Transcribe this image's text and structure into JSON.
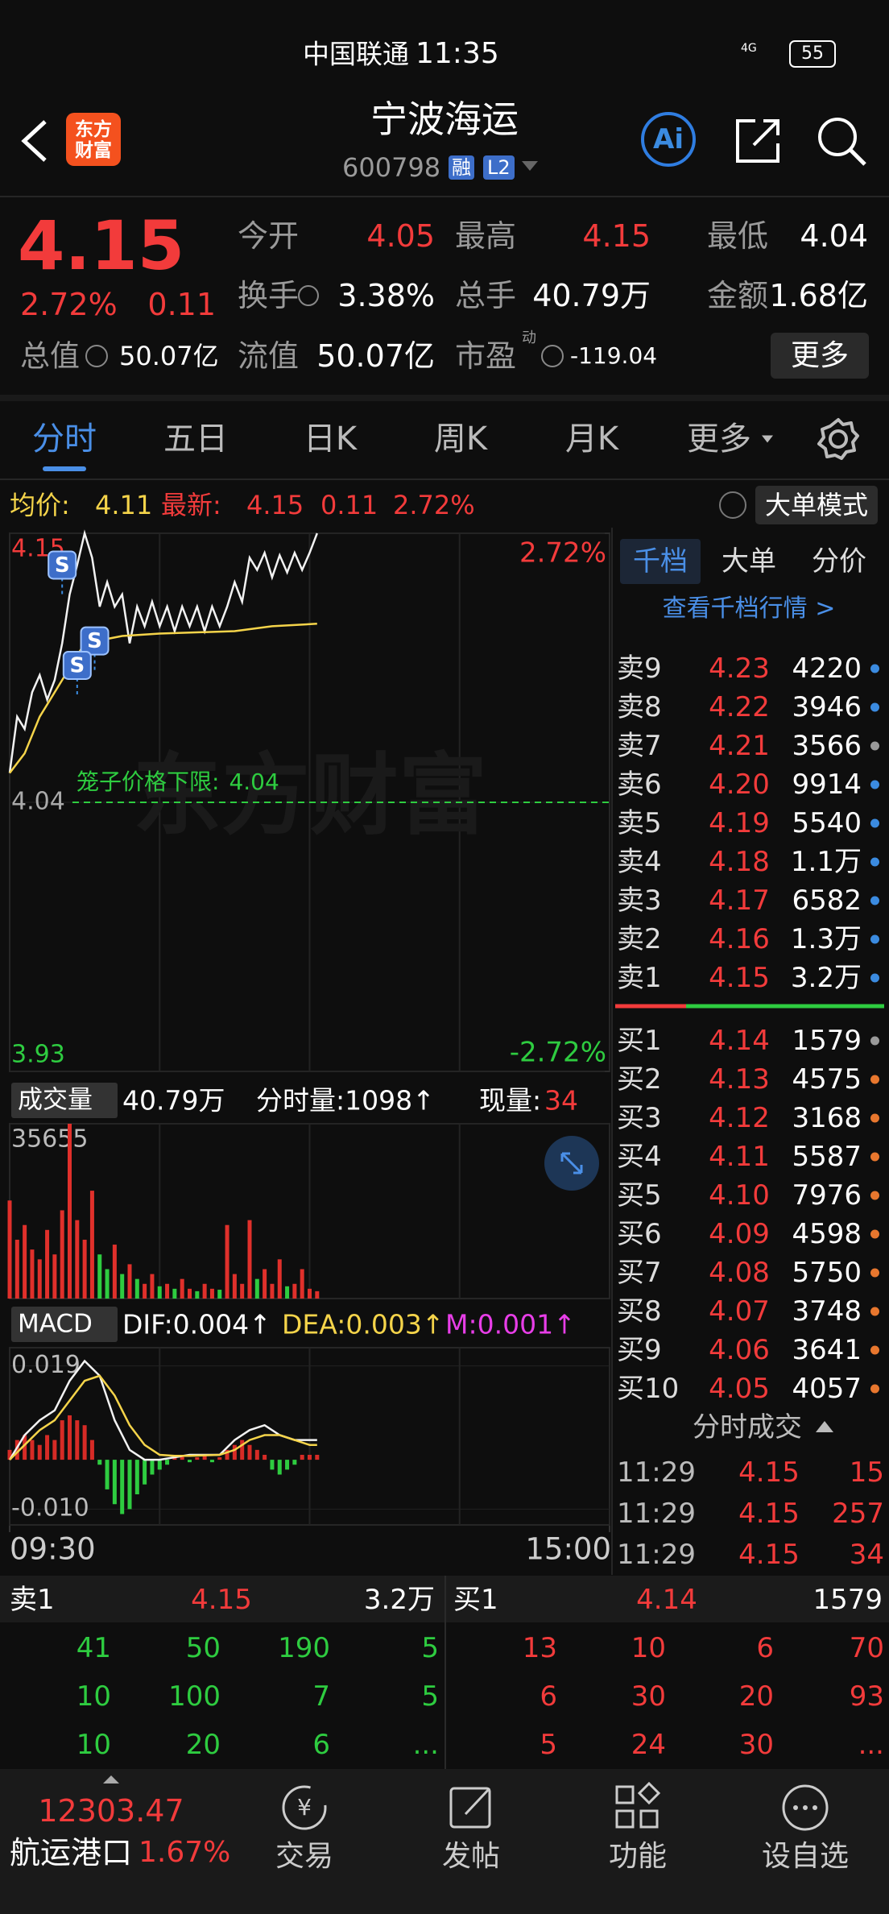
{
  "status_bar": {
    "carrier": "中国联通",
    "time": "11:35",
    "network": "4G",
    "battery": "55"
  },
  "header": {
    "logo": "东方财富",
    "title": "宁波海运",
    "code": "600798",
    "badges": [
      "融",
      "L2"
    ],
    "ai": "Ai"
  },
  "quote": {
    "price": "4.15",
    "change_pct": "2.72%",
    "change": "0.11",
    "fields": [
      {
        "label": "今开",
        "value": "4.05",
        "color": "#f23b3b"
      },
      {
        "label": "最高",
        "value": "4.15",
        "color": "#f23b3b"
      },
      {
        "label": "最低",
        "value": "4.04",
        "color": "#ffffff"
      },
      {
        "label": "换手",
        "value": "3.38%",
        "color": "#ffffff"
      },
      {
        "label": "总手",
        "value": "40.79万",
        "color": "#ffffff"
      },
      {
        "label": "金额",
        "value": "1.68亿",
        "color": "#ffffff"
      }
    ],
    "total_value": {
      "label": "总值",
      "value": "50.07亿"
    },
    "float_value": {
      "label": "流值",
      "value": "50.07亿"
    },
    "pe": {
      "label": "市盈",
      "sup": "动",
      "value": "-119.04"
    },
    "more": "更多"
  },
  "tabs": {
    "items": [
      "分时",
      "五日",
      "日K",
      "周K",
      "月K",
      "更多"
    ],
    "active": 0
  },
  "info_bar": {
    "avg_label": "均价:",
    "avg": "4.11",
    "last_label": "最新:",
    "last": "4.15",
    "change": "0.11",
    "change_pct": "2.72%",
    "mode": "大单模式"
  },
  "chart_data": [
    {
      "type": "line",
      "xlim": [
        0,
        240
      ],
      "xticks": [
        {
          "value": 0,
          "label": "09:30"
        },
        {
          "value": 240,
          "label": "15:00"
        }
      ],
      "ylim": [
        3.93,
        4.15
      ],
      "yticks": [
        3.93,
        4.04,
        4.15
      ],
      "y2lim": [
        -2.72,
        2.72
      ],
      "y2ticks": [
        {
          "value": -2.72,
          "label": "-2.72%"
        },
        {
          "value": 2.72,
          "label": "2.72%"
        }
      ],
      "guide": {
        "label": "笼子价格下限:",
        "value": 4.04,
        "color": "#2ecc40"
      },
      "watermark": "东方财富",
      "series": [
        {
          "color": "#f2f2f2",
          "x": [
            0,
            3,
            6,
            9,
            12,
            15,
            18,
            21,
            24,
            27,
            30,
            33,
            36,
            39,
            42,
            45,
            48,
            51,
            54,
            57,
            60,
            63,
            66,
            69,
            72,
            75,
            78,
            81,
            84,
            87,
            90,
            93,
            96,
            99,
            102,
            105,
            108,
            111,
            114,
            117,
            120,
            123
          ],
          "values": [
            4.052,
            4.075,
            4.07,
            4.085,
            4.092,
            4.082,
            4.09,
            4.105,
            4.125,
            4.137,
            4.15,
            4.14,
            4.12,
            4.13,
            4.12,
            4.125,
            4.105,
            4.12,
            4.112,
            4.122,
            4.112,
            4.12,
            4.11,
            4.12,
            4.112,
            4.12,
            4.11,
            4.12,
            4.112,
            4.12,
            4.13,
            4.122,
            4.14,
            4.135,
            4.142,
            4.132,
            4.141,
            4.134,
            4.142,
            4.135,
            4.142,
            4.15
          ]
        },
        {
          "color": "#f5d44a",
          "x": [
            0,
            6,
            12,
            18,
            24,
            30,
            45,
            60,
            90,
            105,
            123
          ],
          "values": [
            4.052,
            4.06,
            4.075,
            4.085,
            4.095,
            4.105,
            4.108,
            4.109,
            4.11,
            4.112,
            4.113
          ]
        }
      ],
      "trade_marks": [
        {
          "label": "S",
          "x": 21,
          "value": 4.137
        },
        {
          "label": "S",
          "x": 34,
          "value": 4.106
        },
        {
          "label": "S",
          "x": 27,
          "value": 4.096
        }
      ]
    },
    {
      "type": "bar",
      "header": {
        "selector": "成交量",
        "total": "40.79万",
        "minute": "分时量:1098↑",
        "current_label": "现量:",
        "current": "34"
      },
      "xlim": [
        0,
        240
      ],
      "ylim": [
        0,
        35655
      ],
      "yticks": [
        35655
      ],
      "x": [
        0,
        3,
        6,
        9,
        12,
        15,
        18,
        21,
        24,
        27,
        30,
        33,
        36,
        39,
        42,
        45,
        48,
        51,
        54,
        57,
        60,
        63,
        66,
        69,
        72,
        75,
        78,
        81,
        84,
        87,
        90,
        93,
        96,
        99,
        102,
        105,
        108,
        111,
        114,
        117,
        120,
        123
      ],
      "values": [
        20000,
        12000,
        15000,
        10000,
        8000,
        14000,
        9000,
        18000,
        35655,
        16000,
        12000,
        22000,
        9000,
        6000,
        11000,
        5000,
        7000,
        4000,
        3000,
        5000,
        2500,
        3000,
        2000,
        4000,
        2000,
        1500,
        3000,
        2000,
        1800,
        15000,
        5000,
        3000,
        16000,
        4000,
        6000,
        3000,
        8000,
        2500,
        3000,
        6000,
        2000,
        1500
      ],
      "colors": [
        "#e0302b",
        "#e0302b",
        "#e0302b",
        "#e0302b",
        "#e0302b",
        "#e0302b",
        "#e0302b",
        "#e0302b",
        "#e0302b",
        "#e0302b",
        "#e0302b",
        "#e0302b",
        "#2ecc40",
        "#2ecc40",
        "#e0302b",
        "#2ecc40",
        "#e0302b",
        "#2ecc40",
        "#e0302b",
        "#e0302b",
        "#2ecc40",
        "#e0302b",
        "#2ecc40",
        "#e0302b",
        "#e0302b",
        "#2ecc40",
        "#e0302b",
        "#e0302b",
        "#2ecc40",
        "#e0302b",
        "#e0302b",
        "#e0302b",
        "#e0302b",
        "#2ecc40",
        "#e0302b",
        "#e0302b",
        "#e0302b",
        "#2ecc40",
        "#e0302b",
        "#e0302b",
        "#e0302b",
        "#e0302b"
      ]
    },
    {
      "type": "macd",
      "header": {
        "selector": "MACD",
        "dif": "DIF:0.004↑",
        "dea": "DEA:0.003↑",
        "m": "M:0.001↑"
      },
      "xlim": [
        0,
        240
      ],
      "ylim": [
        -0.0132,
        0.0227
      ],
      "yticks": [
        0.019,
        {
          "value": -0.01,
          "label": "-0.010"
        }
      ],
      "lines": [
        {
          "color": "#f2f2f2",
          "x": [
            0,
            6,
            12,
            18,
            24,
            30,
            36,
            42,
            48,
            54,
            60,
            66,
            72,
            78,
            84,
            90,
            96,
            102,
            108,
            114,
            120,
            123
          ],
          "values": [
            0,
            0.005,
            0.008,
            0.01,
            0.016,
            0.02,
            0.017,
            0.008,
            0.002,
            0,
            0,
            0.0005,
            0.001,
            0.001,
            0.001,
            0.004,
            0.006,
            0.007,
            0.005,
            0.004,
            0.004,
            0.004
          ]
        },
        {
          "color": "#f5d44a",
          "x": [
            0,
            6,
            12,
            18,
            24,
            30,
            36,
            42,
            48,
            54,
            60,
            66,
            72,
            78,
            84,
            90,
            96,
            102,
            108,
            114,
            120,
            123
          ],
          "values": [
            0,
            0.003,
            0.006,
            0.008,
            0.012,
            0.016,
            0.017,
            0.013,
            0.007,
            0.003,
            0.001,
            0.0008,
            0.0008,
            0.0009,
            0.001,
            0.002,
            0.004,
            0.005,
            0.005,
            0.004,
            0.003,
            0.003
          ]
        }
      ],
      "histogram": {
        "up_color": "#d62b26",
        "down_color": "#2ecc40",
        "x": [
          0,
          3,
          6,
          9,
          12,
          15,
          18,
          21,
          24,
          27,
          30,
          33,
          36,
          39,
          42,
          45,
          48,
          51,
          54,
          57,
          60,
          63,
          66,
          69,
          72,
          75,
          78,
          81,
          84,
          87,
          90,
          93,
          96,
          99,
          102,
          105,
          108,
          111,
          114,
          117,
          120,
          123
        ],
        "values": [
          0.002,
          0.004,
          0.005,
          0.004,
          0.003,
          0.005,
          0.004,
          0.008,
          0.009,
          0.008,
          0.007,
          0.004,
          -0.001,
          -0.006,
          -0.009,
          -0.011,
          -0.01,
          -0.007,
          -0.005,
          -0.003,
          -0.002,
          -0.001,
          0.0005,
          0.001,
          -0.0005,
          0.0005,
          0.001,
          -0.0005,
          0.0005,
          0.002,
          0.003,
          0.004,
          0.003,
          0.002,
          0.001,
          -0.002,
          -0.003,
          -0.002,
          -0.001,
          0.001,
          0.001,
          0.001
        ]
      }
    }
  ],
  "order_book": {
    "tabs": [
      "千档",
      "大单",
      "分价"
    ],
    "active": 0,
    "link": "查看千档行情 >",
    "asks": [
      {
        "label": "卖9",
        "price": "4.23",
        "volume": "4220",
        "dot": "#3b8be0"
      },
      {
        "label": "卖8",
        "price": "4.22",
        "volume": "3946",
        "dot": "#3b8be0"
      },
      {
        "label": "卖7",
        "price": "4.21",
        "volume": "3566",
        "dot": "#9a9a9a"
      },
      {
        "label": "卖6",
        "price": "4.20",
        "volume": "9914",
        "dot": "#3b8be0"
      },
      {
        "label": "卖5",
        "price": "4.19",
        "volume": "5540",
        "dot": "#3b8be0"
      },
      {
        "label": "卖4",
        "price": "4.18",
        "volume": "1.1万",
        "dot": "#3b8be0"
      },
      {
        "label": "卖3",
        "price": "4.17",
        "volume": "6582",
        "dot": "#3b8be0"
      },
      {
        "label": "卖2",
        "price": "4.16",
        "volume": "1.3万",
        "dot": "#3b8be0"
      },
      {
        "label": "卖1",
        "price": "4.15",
        "volume": "3.2万",
        "dot": "#3b8be0"
      }
    ],
    "bids": [
      {
        "label": "买1",
        "price": "4.14",
        "volume": "1579",
        "dot": "#9a9a9a"
      },
      {
        "label": "买2",
        "price": "4.13",
        "volume": "4575",
        "dot": "#e8772e"
      },
      {
        "label": "买3",
        "price": "4.12",
        "volume": "3168",
        "dot": "#e8772e"
      },
      {
        "label": "买4",
        "price": "4.11",
        "volume": "5587",
        "dot": "#e8772e"
      },
      {
        "label": "买5",
        "price": "4.10",
        "volume": "7976",
        "dot": "#e8772e"
      },
      {
        "label": "买6",
        "price": "4.09",
        "volume": "4598",
        "dot": "#e8772e"
      },
      {
        "label": "买7",
        "price": "4.08",
        "volume": "5750",
        "dot": "#e8772e"
      },
      {
        "label": "买8",
        "price": "4.07",
        "volume": "3748",
        "dot": "#e8772e"
      },
      {
        "label": "买9",
        "price": "4.06",
        "volume": "3641",
        "dot": "#e8772e"
      },
      {
        "label": "买10",
        "price": "4.05",
        "volume": "4057",
        "dot": "#e8772e"
      }
    ],
    "trades_title": "分时成交",
    "trades": [
      {
        "time": "11:29",
        "price": "4.15",
        "volume": "15"
      },
      {
        "time": "11:29",
        "price": "4.15",
        "volume": "257"
      },
      {
        "time": "11:29",
        "price": "4.15",
        "volume": "34"
      }
    ]
  },
  "level1": {
    "ask": {
      "label": "卖1",
      "price": "4.15",
      "volume": "3.2万",
      "queue": [
        [
          "41",
          "50",
          "190",
          "5"
        ],
        [
          "10",
          "100",
          "7",
          "5"
        ],
        [
          "10",
          "20",
          "6",
          "..."
        ]
      ]
    },
    "bid": {
      "label": "买1",
      "price": "4.14",
      "volume": "1579",
      "queue": [
        [
          "13",
          "10",
          "6",
          "70"
        ],
        [
          "6",
          "30",
          "20",
          "93"
        ],
        [
          "5",
          "24",
          "30",
          "..."
        ]
      ]
    }
  },
  "index": {
    "value": "12303.47",
    "name": "航运港口",
    "change": "1.67%"
  },
  "nav": [
    "交易",
    "发帖",
    "功能",
    "设自选"
  ]
}
